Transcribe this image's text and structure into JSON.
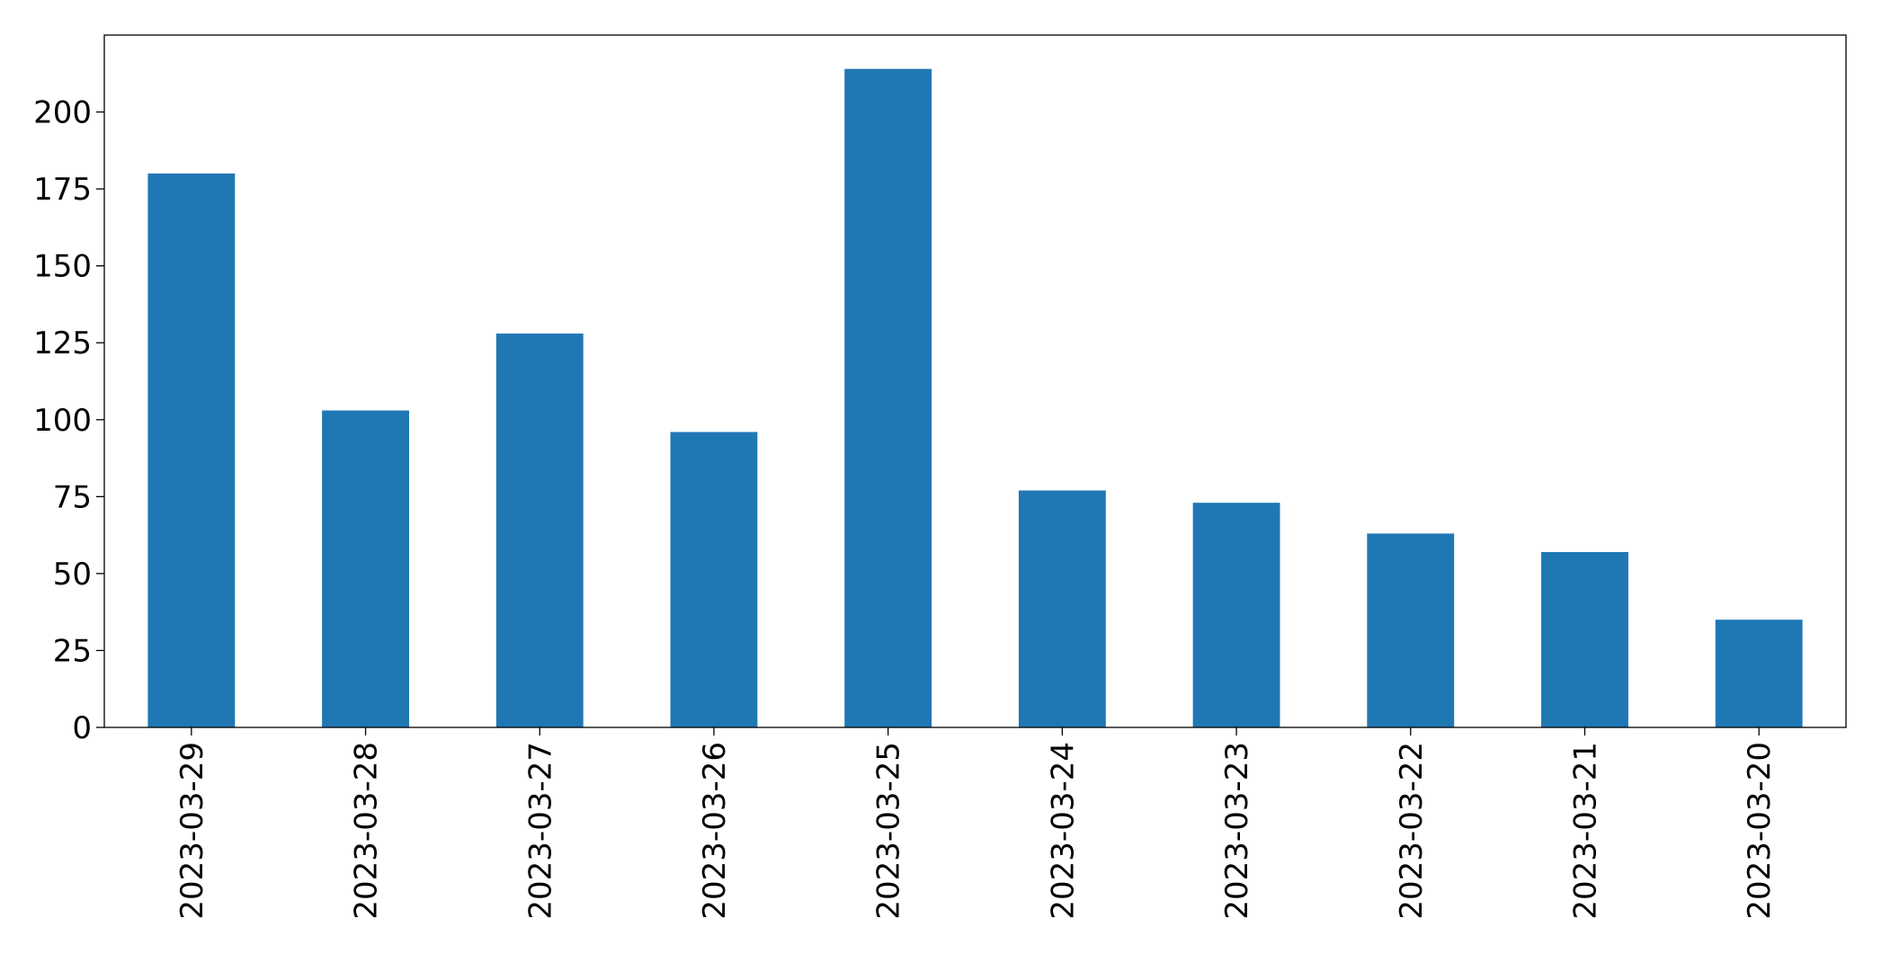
{
  "chart_data": {
    "type": "bar",
    "categories": [
      "2023-03-29",
      "2023-03-28",
      "2023-03-27",
      "2023-03-26",
      "2023-03-25",
      "2023-03-24",
      "2023-03-23",
      "2023-03-22",
      "2023-03-21",
      "2023-03-20"
    ],
    "values": [
      180,
      103,
      128,
      96,
      214,
      77,
      73,
      63,
      57,
      35
    ],
    "color": "#1f77b4",
    "ylim": [
      0,
      225
    ],
    "yticks": [
      0,
      25,
      50,
      75,
      100,
      125,
      150,
      175,
      200
    ],
    "grid": false
  }
}
